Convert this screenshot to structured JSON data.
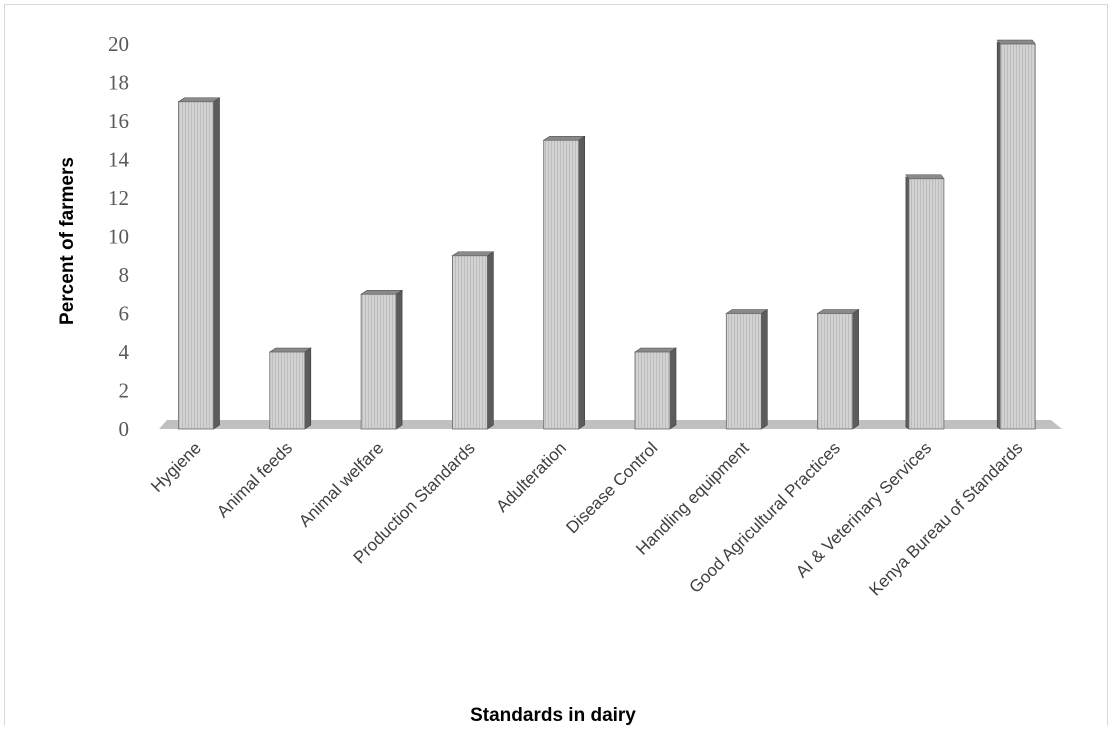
{
  "chart_data": {
    "type": "bar",
    "title": "",
    "xlabel": "Standards in dairy",
    "ylabel": "Percent of farmers",
    "categories": [
      "Hygiene",
      "Animal feeds",
      "Animal welfare",
      "Production Standards",
      "Adulteration",
      "Disease Control",
      "Handling equipment",
      "Good Agricultural Practices",
      "AI & Veterinary Services",
      "Kenya Bureau of Standards"
    ],
    "values": [
      17,
      4,
      7,
      9,
      15,
      4,
      6,
      6,
      13,
      20
    ],
    "yticks": [
      "0",
      "2",
      "4",
      "6",
      "8",
      "10",
      "12",
      "14",
      "16",
      "18",
      "20"
    ],
    "ylim": [
      0,
      20
    ],
    "grid": false,
    "legend": "none",
    "style": "3d-column",
    "colors": {
      "bar_face": "#cfcfcf",
      "bar_side": "#5c5c5c",
      "bar_top": "#8a8a8a",
      "floor": "#c0c0c0"
    }
  }
}
